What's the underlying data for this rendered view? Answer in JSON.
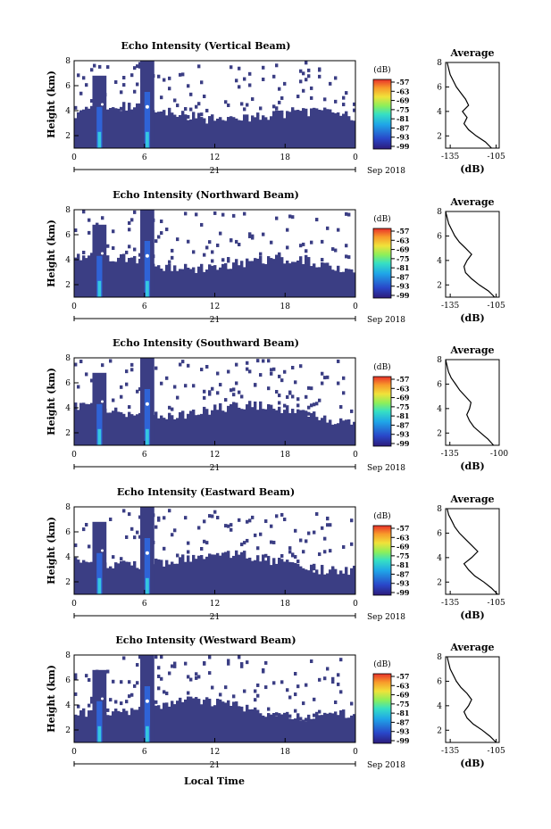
{
  "figure": {
    "xlabel_bottom": "Local Time",
    "date_label": "Sep 2018",
    "day_label": "21",
    "colorbar_unit": "(dB)",
    "colorbar_ticks": [
      "-57",
      "-63",
      "-69",
      "-75",
      "-81",
      "-87",
      "-93",
      "-99"
    ],
    "colors": {
      "background_echo": "#3b3e84",
      "strong_echo": "#35c6e0",
      "core_echo": "#ffffff"
    }
  },
  "chart_data": [
    {
      "type": "heatmap",
      "title": "Echo Intensity (Vertical Beam)",
      "ylabel": "Height (km)",
      "x_ticks": [
        "0",
        "6",
        "12",
        "18",
        "0"
      ],
      "y_ticks": [
        "2",
        "4",
        "6",
        "8"
      ],
      "ylim": [
        1,
        8
      ],
      "colorbar": {
        "label": "(dB)",
        "range": [
          -99,
          -57
        ]
      },
      "average_profile": {
        "title": "Average",
        "xlabel": "(dB)",
        "x_ticks": [
          "-135",
          "-105"
        ],
        "xlim": [
          -138,
          -103
        ],
        "y_ticks": [
          "2",
          "4",
          "6",
          "8"
        ],
        "ylim": [
          1,
          8
        ],
        "points": [
          [
            -108,
            1.0
          ],
          [
            -112,
            1.5
          ],
          [
            -118,
            2.0
          ],
          [
            -123,
            2.5
          ],
          [
            -126,
            3.0
          ],
          [
            -124,
            3.5
          ],
          [
            -127,
            4.0
          ],
          [
            -123,
            4.5
          ],
          [
            -125,
            5.0
          ],
          [
            -128,
            5.5
          ],
          [
            -131,
            6.0
          ],
          [
            -133,
            6.5
          ],
          [
            -135,
            7.0
          ],
          [
            -136,
            7.5
          ],
          [
            -137,
            8.0
          ]
        ]
      }
    },
    {
      "type": "heatmap",
      "title": "Echo Intensity (Northward Beam)",
      "ylabel": "Height (km)",
      "x_ticks": [
        "0",
        "6",
        "12",
        "18",
        "0"
      ],
      "y_ticks": [
        "2",
        "4",
        "6",
        "8"
      ],
      "ylim": [
        1,
        8
      ],
      "colorbar": {
        "label": "(dB)",
        "range": [
          -99,
          -57
        ]
      },
      "average_profile": {
        "title": "Average",
        "xlabel": "(dB)",
        "x_ticks": [
          "-135",
          "-105"
        ],
        "xlim": [
          -138,
          -103
        ],
        "y_ticks": [
          "2",
          "4",
          "6",
          "8"
        ],
        "ylim": [
          1,
          8
        ],
        "points": [
          [
            -106,
            1.0
          ],
          [
            -110,
            1.5
          ],
          [
            -116,
            2.0
          ],
          [
            -121,
            2.5
          ],
          [
            -125,
            3.0
          ],
          [
            -126,
            3.5
          ],
          [
            -124,
            4.0
          ],
          [
            -121,
            4.5
          ],
          [
            -125,
            5.0
          ],
          [
            -129,
            5.5
          ],
          [
            -132,
            6.0
          ],
          [
            -134,
            6.5
          ],
          [
            -136,
            7.0
          ],
          [
            -137,
            7.5
          ],
          [
            -138,
            8.0
          ]
        ]
      }
    },
    {
      "type": "heatmap",
      "title": "Echo Intensity (Southward Beam)",
      "ylabel": "Height (km)",
      "x_ticks": [
        "0",
        "6",
        "12",
        "18",
        "0"
      ],
      "y_ticks": [
        "2",
        "4",
        "6",
        "8"
      ],
      "ylim": [
        1,
        8
      ],
      "colorbar": {
        "label": "(dB)",
        "range": [
          -99,
          -57
        ]
      },
      "average_profile": {
        "title": "Average",
        "xlabel": "(dB)",
        "x_ticks": [
          "-135",
          "-100"
        ],
        "xlim": [
          -138,
          -100
        ],
        "y_ticks": [
          "2",
          "4",
          "6",
          "8"
        ],
        "ylim": [
          1,
          8
        ],
        "points": [
          [
            -104,
            1.0
          ],
          [
            -108,
            1.5
          ],
          [
            -113,
            2.0
          ],
          [
            -118,
            2.5
          ],
          [
            -121,
            3.0
          ],
          [
            -123,
            3.5
          ],
          [
            -121,
            4.0
          ],
          [
            -120,
            4.5
          ],
          [
            -124,
            5.0
          ],
          [
            -128,
            5.5
          ],
          [
            -131,
            6.0
          ],
          [
            -134,
            6.5
          ],
          [
            -136,
            7.0
          ],
          [
            -137,
            7.5
          ],
          [
            -138,
            8.0
          ]
        ]
      }
    },
    {
      "type": "heatmap",
      "title": "Echo Intensity (Eastward Beam)",
      "ylabel": "Height (km)",
      "x_ticks": [
        "0",
        "6",
        "12",
        "18",
        "0"
      ],
      "y_ticks": [
        "2",
        "4",
        "6",
        "8"
      ],
      "ylim": [
        1,
        8
      ],
      "colorbar": {
        "label": "(dB)",
        "range": [
          -99,
          -57
        ]
      },
      "average_profile": {
        "title": "Average",
        "xlabel": "(dB)",
        "x_ticks": [
          "-135",
          "-105"
        ],
        "xlim": [
          -138,
          -103
        ],
        "y_ticks": [
          "2",
          "4",
          "6",
          "8"
        ],
        "ylim": [
          1,
          8
        ],
        "points": [
          [
            -104,
            1.0
          ],
          [
            -108,
            1.5
          ],
          [
            -113,
            2.0
          ],
          [
            -119,
            2.5
          ],
          [
            -123,
            3.0
          ],
          [
            -126,
            3.5
          ],
          [
            -121,
            4.0
          ],
          [
            -117,
            4.5
          ],
          [
            -121,
            5.0
          ],
          [
            -125,
            5.5
          ],
          [
            -129,
            6.0
          ],
          [
            -132,
            6.5
          ],
          [
            -134,
            7.0
          ],
          [
            -136,
            7.5
          ],
          [
            -137,
            8.0
          ]
        ]
      }
    },
    {
      "type": "heatmap",
      "title": "Echo Intensity (Westward Beam)",
      "ylabel": "Height (km)",
      "x_ticks": [
        "0",
        "6",
        "12",
        "18",
        "0"
      ],
      "y_ticks": [
        "2",
        "4",
        "6",
        "8"
      ],
      "ylim": [
        1,
        8
      ],
      "colorbar": {
        "label": "(dB)",
        "range": [
          -99,
          -57
        ]
      },
      "average_profile": {
        "title": "Average",
        "xlabel": "(dB)",
        "x_ticks": [
          "-135",
          "-105"
        ],
        "xlim": [
          -138,
          -103
        ],
        "y_ticks": [
          "2",
          "4",
          "6",
          "8"
        ],
        "ylim": [
          1,
          8
        ],
        "points": [
          [
            -105,
            1.0
          ],
          [
            -109,
            1.5
          ],
          [
            -114,
            2.0
          ],
          [
            -120,
            2.5
          ],
          [
            -124,
            3.0
          ],
          [
            -126,
            3.5
          ],
          [
            -123,
            4.0
          ],
          [
            -121,
            4.5
          ],
          [
            -124,
            5.0
          ],
          [
            -128,
            5.5
          ],
          [
            -131,
            6.0
          ],
          [
            -133,
            6.5
          ],
          [
            -135,
            7.0
          ],
          [
            -136,
            7.5
          ],
          [
            -137,
            8.0
          ]
        ]
      }
    }
  ]
}
